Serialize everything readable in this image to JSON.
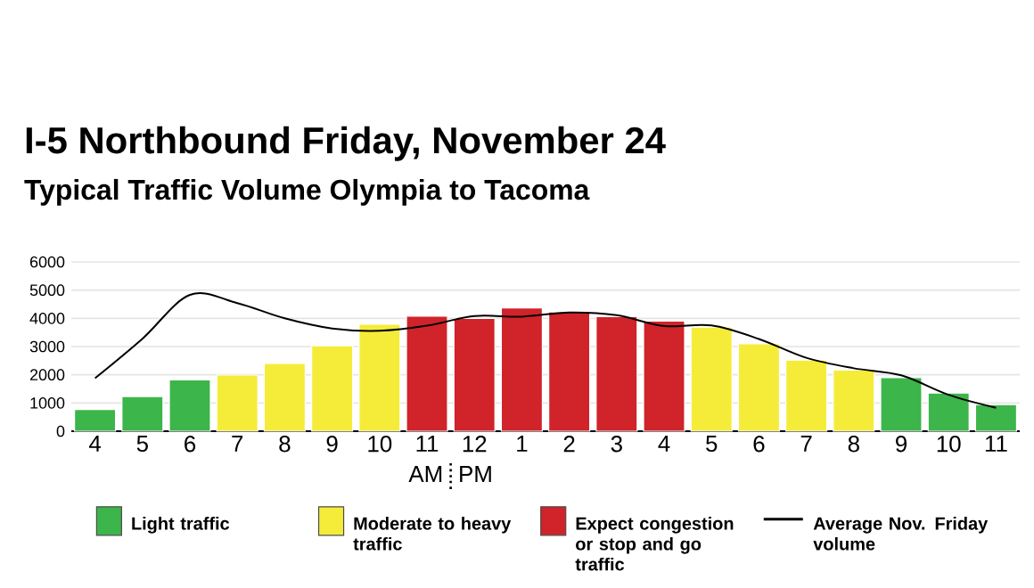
{
  "chart_data": {
    "type": "bar",
    "title": "I-5 Northbound Friday, November 24",
    "subtitle": "Typical Traffic Volume Olympia to Tacoma",
    "categories": [
      "4",
      "5",
      "6",
      "7",
      "8",
      "9",
      "10",
      "11",
      "12",
      "1",
      "2",
      "3",
      "4",
      "5",
      "6",
      "7",
      "8",
      "9",
      "10",
      "11"
    ],
    "series": [
      {
        "name": "Light traffic",
        "color": "#3cb54a",
        "values": [
          770,
          1230,
          1820,
          null,
          null,
          null,
          null,
          null,
          null,
          null,
          null,
          null,
          null,
          null,
          null,
          null,
          null,
          1900,
          1350,
          940
        ]
      },
      {
        "name": "Moderate to heavy traffic",
        "color": "#f5ec3a",
        "values": [
          null,
          null,
          null,
          1990,
          2400,
          3030,
          3790,
          null,
          null,
          null,
          null,
          null,
          null,
          3690,
          3100,
          2520,
          2170,
          null,
          null,
          null
        ]
      },
      {
        "name": "Expect congestion or stop and go traffic",
        "color": "#d0232a",
        "values": [
          null,
          null,
          null,
          null,
          null,
          null,
          null,
          4080,
          4000,
          4370,
          4230,
          4060,
          3900,
          null,
          null,
          null,
          null,
          null,
          null,
          null
        ]
      },
      {
        "name": "Average Nov. Friday volume",
        "type": "line",
        "color": "#000000",
        "values": [
          1880,
          3280,
          4830,
          4540,
          4000,
          3640,
          3560,
          3740,
          4080,
          4060,
          4210,
          4110,
          3730,
          3750,
          3270,
          2600,
          2230,
          1980,
          1290,
          830
        ]
      }
    ],
    "ylim": [
      0,
      6000
    ],
    "yticks": [
      0,
      1000,
      2000,
      3000,
      4000,
      5000,
      6000
    ],
    "grid": "y",
    "legend": "bottom",
    "annotations": [
      "AM",
      "PM"
    ]
  }
}
